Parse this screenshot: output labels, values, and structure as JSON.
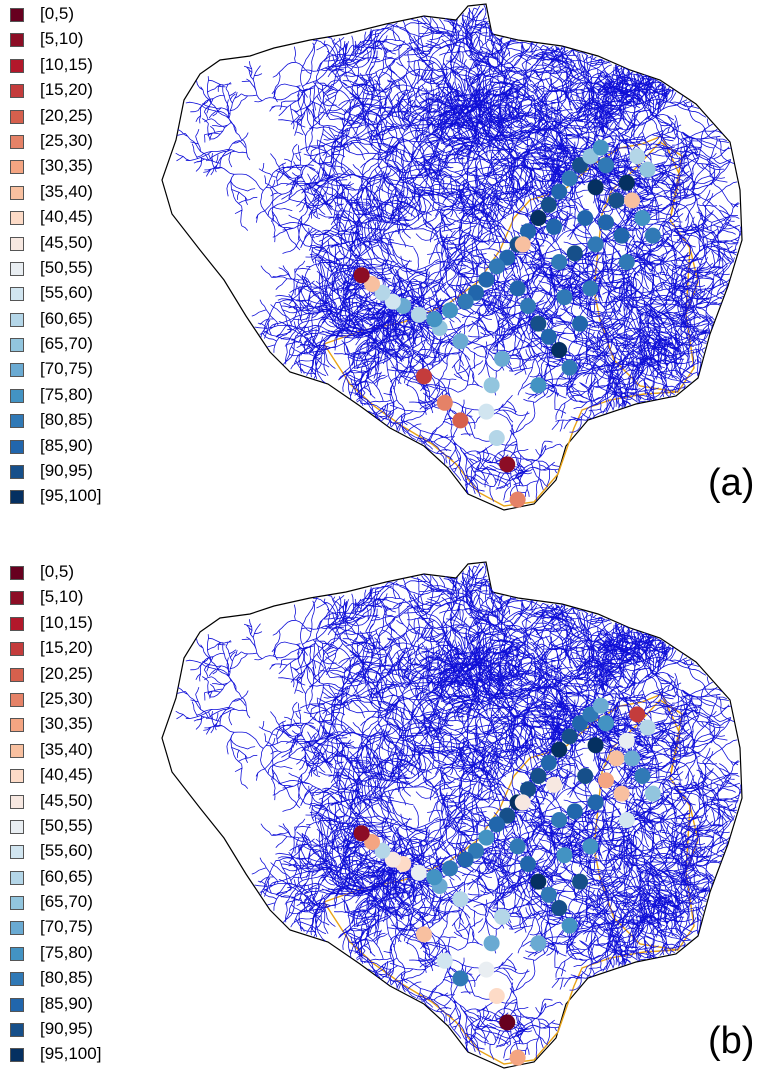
{
  "legend": {
    "bins": [
      "[0,5)",
      "[5,10)",
      "[10,15)",
      "[15,20)",
      "[20,25)",
      "[25,30)",
      "[30,35)",
      "[35,40)",
      "[40,45)",
      "[45,50)",
      "[50,55)",
      "[55,60)",
      "[60,65)",
      "[65,70)",
      "[70,75)",
      "[75,80)",
      "[80,85)",
      "[85,90)",
      "[90,95)",
      "[95,100]"
    ],
    "colors": [
      "#67001f",
      "#8c0d25",
      "#b2182b",
      "#c43c3c",
      "#d6604d",
      "#e58267",
      "#f4a582",
      "#f8c0a0",
      "#fddbc7",
      "#f7e8e1",
      "#e9eef2",
      "#d1e5f0",
      "#b4d6e8",
      "#92c5de",
      "#6aaad2",
      "#4393c3",
      "#3079b6",
      "#2166ac",
      "#164f8a",
      "#053061"
    ]
  },
  "map_style": {
    "river_color": "#1010d8",
    "boundary_color": "#000000",
    "subbasin_color": "#e8a317"
  },
  "panels": [
    {
      "label": "(a)",
      "stations": [
        {
          "x": 27,
          "y": 48,
          "bin": 14
        },
        {
          "x": 23,
          "y": 45,
          "bin": 13
        },
        {
          "x": 19,
          "y": 42,
          "bin": 12
        },
        {
          "x": 16,
          "y": 40,
          "bin": 14
        },
        {
          "x": 36,
          "y": 29,
          "bin": 17
        },
        {
          "x": 34,
          "y": 31,
          "bin": 16
        },
        {
          "x": 32,
          "y": 34,
          "bin": 17
        },
        {
          "x": 30,
          "y": 37,
          "bin": 17
        },
        {
          "x": 28,
          "y": 39,
          "bin": 16
        },
        {
          "x": 25,
          "y": 41,
          "bin": 15
        },
        {
          "x": 22,
          "y": 43,
          "bin": 15
        },
        {
          "x": 14,
          "y": 39,
          "bin": 11
        },
        {
          "x": 12,
          "y": 37,
          "bin": 12
        },
        {
          "x": 10,
          "y": 35,
          "bin": 7
        },
        {
          "x": 8,
          "y": 33,
          "bin": 1
        },
        {
          "x": 38,
          "y": 26,
          "bin": 18
        },
        {
          "x": 40,
          "y": 23,
          "bin": 17
        },
        {
          "x": 42,
          "y": 20,
          "bin": 19
        },
        {
          "x": 44,
          "y": 17,
          "bin": 18
        },
        {
          "x": 46,
          "y": 14,
          "bin": 17
        },
        {
          "x": 48,
          "y": 11,
          "bin": 16
        },
        {
          "x": 50,
          "y": 8,
          "bin": 18
        },
        {
          "x": 52,
          "y": 6,
          "bin": 13
        },
        {
          "x": 54,
          "y": 4,
          "bin": 15
        },
        {
          "x": 38,
          "y": 36,
          "bin": 17
        },
        {
          "x": 40,
          "y": 40,
          "bin": 16
        },
        {
          "x": 42,
          "y": 44,
          "bin": 18
        },
        {
          "x": 44,
          "y": 47,
          "bin": 17
        },
        {
          "x": 46,
          "y": 50,
          "bin": 19
        },
        {
          "x": 48,
          "y": 54,
          "bin": 16
        },
        {
          "x": 35,
          "y": 52,
          "bin": 14
        },
        {
          "x": 33,
          "y": 58,
          "bin": 13
        },
        {
          "x": 32,
          "y": 64,
          "bin": 11
        },
        {
          "x": 34,
          "y": 70,
          "bin": 12
        },
        {
          "x": 36,
          "y": 76,
          "bin": 1
        },
        {
          "x": 38,
          "y": 84,
          "bin": 5
        },
        {
          "x": 45,
          "y": 22,
          "bin": 17
        },
        {
          "x": 46,
          "y": 30,
          "bin": 16
        },
        {
          "x": 47,
          "y": 38,
          "bin": 16
        },
        {
          "x": 49,
          "y": 28,
          "bin": 18
        },
        {
          "x": 51,
          "y": 20,
          "bin": 17
        },
        {
          "x": 53,
          "y": 13,
          "bin": 19
        },
        {
          "x": 55,
          "y": 8,
          "bin": 16
        },
        {
          "x": 61,
          "y": 6,
          "bin": 12
        },
        {
          "x": 63,
          "y": 9,
          "bin": 13
        },
        {
          "x": 59,
          "y": 12,
          "bin": 19
        },
        {
          "x": 57,
          "y": 16,
          "bin": 18
        },
        {
          "x": 55,
          "y": 21,
          "bin": 17
        },
        {
          "x": 53,
          "y": 26,
          "bin": 16
        },
        {
          "x": 60,
          "y": 16,
          "bin": 7
        },
        {
          "x": 62,
          "y": 20,
          "bin": 15
        },
        {
          "x": 64,
          "y": 24,
          "bin": 16
        },
        {
          "x": 58,
          "y": 24,
          "bin": 17
        },
        {
          "x": 59,
          "y": 30,
          "bin": 16
        },
        {
          "x": 20,
          "y": 56,
          "bin": 3
        },
        {
          "x": 24,
          "y": 62,
          "bin": 5
        },
        {
          "x": 27,
          "y": 66,
          "bin": 4
        },
        {
          "x": 42,
          "y": 58,
          "bin": 15
        },
        {
          "x": 39,
          "y": 26,
          "bin": 7
        },
        {
          "x": 50,
          "y": 44,
          "bin": 17
        },
        {
          "x": 52,
          "y": 36,
          "bin": 16
        }
      ]
    },
    {
      "label": "(b)",
      "stations": [
        {
          "x": 27,
          "y": 48,
          "bin": 12
        },
        {
          "x": 23,
          "y": 45,
          "bin": 14
        },
        {
          "x": 19,
          "y": 42,
          "bin": 10
        },
        {
          "x": 16,
          "y": 40,
          "bin": 8
        },
        {
          "x": 36,
          "y": 29,
          "bin": 18
        },
        {
          "x": 34,
          "y": 31,
          "bin": 17
        },
        {
          "x": 32,
          "y": 34,
          "bin": 15
        },
        {
          "x": 30,
          "y": 37,
          "bin": 16
        },
        {
          "x": 28,
          "y": 39,
          "bin": 17
        },
        {
          "x": 25,
          "y": 41,
          "bin": 16
        },
        {
          "x": 22,
          "y": 43,
          "bin": 15
        },
        {
          "x": 14,
          "y": 39,
          "bin": 9
        },
        {
          "x": 12,
          "y": 37,
          "bin": 12
        },
        {
          "x": 10,
          "y": 35,
          "bin": 6
        },
        {
          "x": 8,
          "y": 33,
          "bin": 1
        },
        {
          "x": 38,
          "y": 26,
          "bin": 19
        },
        {
          "x": 40,
          "y": 23,
          "bin": 18
        },
        {
          "x": 42,
          "y": 20,
          "bin": 18
        },
        {
          "x": 44,
          "y": 17,
          "bin": 17
        },
        {
          "x": 46,
          "y": 14,
          "bin": 19
        },
        {
          "x": 48,
          "y": 11,
          "bin": 18
        },
        {
          "x": 50,
          "y": 8,
          "bin": 17
        },
        {
          "x": 52,
          "y": 6,
          "bin": 16
        },
        {
          "x": 54,
          "y": 4,
          "bin": 14
        },
        {
          "x": 38,
          "y": 36,
          "bin": 16
        },
        {
          "x": 40,
          "y": 40,
          "bin": 17
        },
        {
          "x": 42,
          "y": 44,
          "bin": 19
        },
        {
          "x": 44,
          "y": 47,
          "bin": 16
        },
        {
          "x": 46,
          "y": 50,
          "bin": 18
        },
        {
          "x": 48,
          "y": 54,
          "bin": 15
        },
        {
          "x": 35,
          "y": 52,
          "bin": 12
        },
        {
          "x": 33,
          "y": 58,
          "bin": 14
        },
        {
          "x": 32,
          "y": 64,
          "bin": 10
        },
        {
          "x": 34,
          "y": 70,
          "bin": 8
        },
        {
          "x": 36,
          "y": 76,
          "bin": 0
        },
        {
          "x": 38,
          "y": 84,
          "bin": 6
        },
        {
          "x": 45,
          "y": 22,
          "bin": 9
        },
        {
          "x": 46,
          "y": 30,
          "bin": 16
        },
        {
          "x": 47,
          "y": 38,
          "bin": 15
        },
        {
          "x": 49,
          "y": 28,
          "bin": 17
        },
        {
          "x": 51,
          "y": 20,
          "bin": 18
        },
        {
          "x": 53,
          "y": 13,
          "bin": 19
        },
        {
          "x": 55,
          "y": 8,
          "bin": 15
        },
        {
          "x": 61,
          "y": 6,
          "bin": 3
        },
        {
          "x": 63,
          "y": 9,
          "bin": 12
        },
        {
          "x": 59,
          "y": 12,
          "bin": 10
        },
        {
          "x": 57,
          "y": 16,
          "bin": 7
        },
        {
          "x": 55,
          "y": 21,
          "bin": 6
        },
        {
          "x": 53,
          "y": 26,
          "bin": 17
        },
        {
          "x": 60,
          "y": 16,
          "bin": 14
        },
        {
          "x": 62,
          "y": 20,
          "bin": 16
        },
        {
          "x": 64,
          "y": 24,
          "bin": 13
        },
        {
          "x": 58,
          "y": 24,
          "bin": 7
        },
        {
          "x": 59,
          "y": 30,
          "bin": 11
        },
        {
          "x": 20,
          "y": 56,
          "bin": 7
        },
        {
          "x": 24,
          "y": 62,
          "bin": 11
        },
        {
          "x": 27,
          "y": 66,
          "bin": 16
        },
        {
          "x": 42,
          "y": 58,
          "bin": 14
        },
        {
          "x": 39,
          "y": 26,
          "bin": 9
        },
        {
          "x": 50,
          "y": 44,
          "bin": 18
        },
        {
          "x": 52,
          "y": 36,
          "bin": 15
        }
      ]
    }
  ]
}
